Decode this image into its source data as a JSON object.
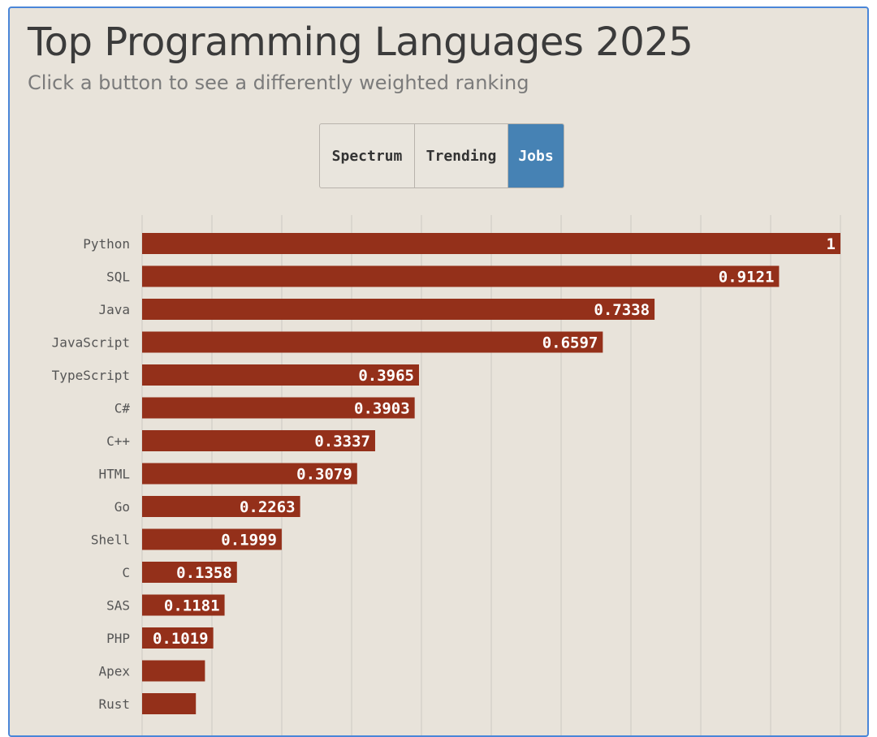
{
  "title": "Top Programming Languages 2025",
  "subtitle": "Click a button to see a differently weighted ranking",
  "buttons": {
    "spectrum": "Spectrum",
    "trending": "Trending",
    "jobs": "Jobs",
    "active": "Jobs"
  },
  "colors": {
    "background": "#e8e3da",
    "bar": "#94301a",
    "active_button": "#4682b4",
    "frame_border": "#4a86d8"
  },
  "chart_data": {
    "type": "bar",
    "orientation": "horizontal",
    "title": "Top Programming Languages 2025",
    "categories": [
      "Python",
      "SQL",
      "Java",
      "JavaScript",
      "TypeScript",
      "C#",
      "C++",
      "HTML",
      "Go",
      "Shell",
      "C",
      "SAS",
      "PHP",
      "Apex",
      "Rust"
    ],
    "values": [
      1,
      0.9121,
      0.7338,
      0.6597,
      0.3965,
      0.3903,
      0.3337,
      0.3079,
      0.2263,
      0.1999,
      0.1358,
      0.1181,
      0.1019,
      0.09,
      0.077
    ],
    "value_labels": [
      "1",
      "0.9121",
      "0.7338",
      "0.6597",
      "0.3965",
      "0.3903",
      "0.3337",
      "0.3079",
      "0.2263",
      "0.1999",
      "0.1358",
      "0.1181",
      "0.1019",
      "",
      ""
    ],
    "xlim": [
      0,
      1
    ],
    "grid": true,
    "xlabel": "",
    "ylabel": ""
  }
}
